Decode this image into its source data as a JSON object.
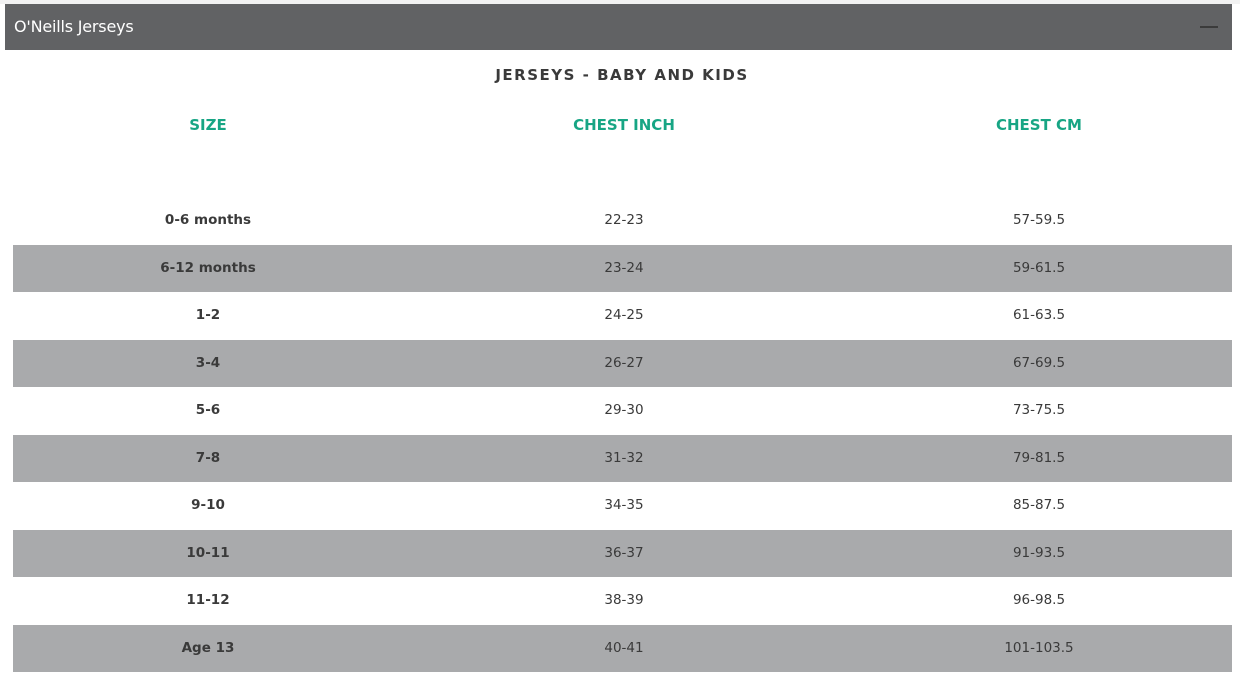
{
  "panel": {
    "title": "O'Neills Jerseys",
    "collapse_icon": "minus-icon"
  },
  "table": {
    "title": "JERSEYS - BABY AND KIDS",
    "headers": [
      "SIZE",
      "CHEST INCH",
      "CHEST CM"
    ],
    "rows": [
      [
        "0-6 months",
        "22-23",
        "57-59.5"
      ],
      [
        "6-12 months",
        "23-24",
        "59-61.5"
      ],
      [
        "1-2",
        "24-25",
        "61-63.5"
      ],
      [
        "3-4",
        "26-27",
        "67-69.5"
      ],
      [
        "5-6",
        "29-30",
        "73-75.5"
      ],
      [
        "7-8",
        "31-32",
        "79-81.5"
      ],
      [
        "9-10",
        "34-35",
        "85-87.5"
      ],
      [
        "10-11",
        "36-37",
        "91-93.5"
      ],
      [
        "11-12",
        "38-39",
        "96-98.5"
      ],
      [
        "Age 13",
        "40-41",
        "101-103.5"
      ]
    ]
  },
  "colors": {
    "header_bar": "#616264",
    "accent": "#17a584",
    "stripe": "#a9aaac"
  }
}
